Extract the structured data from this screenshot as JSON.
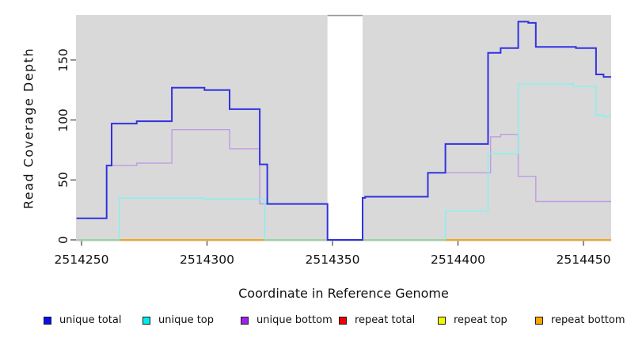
{
  "figure": {
    "x_title": "Coordinate in Reference Genome",
    "y_title": "Read Coverage Depth"
  },
  "chart_data": {
    "type": "line",
    "step": true,
    "title": "",
    "xlabel": "Coordinate in Reference Genome",
    "ylabel": "Read Coverage Depth",
    "xlim": [
      2514248,
      2514461
    ],
    "ylim": [
      0,
      187
    ],
    "x_ticks": [
      2514250,
      2514300,
      2514350,
      2514400,
      2514450
    ],
    "y_ticks": [
      0,
      50,
      100,
      150
    ],
    "grid": false,
    "panel_bg": "#d9d9d9",
    "gap_region": {
      "x_start": 2514348,
      "x_end": 2514362,
      "fill": "#ffffff",
      "top_edge_color": "#999999"
    },
    "series": [
      {
        "name": "repeat total",
        "line_color": "#e03030",
        "points": [
          [
            2514248,
            0
          ],
          [
            2514461,
            0
          ]
        ]
      },
      {
        "name": "repeat top",
        "line_color": "#f2f20a",
        "points": [
          [
            2514248,
            0
          ],
          [
            2514461,
            0
          ]
        ]
      },
      {
        "name": "repeat bottom",
        "line_color": "#ff9f00",
        "points": [
          [
            2514248,
            0
          ],
          [
            2514461,
            0
          ]
        ]
      },
      {
        "name": "unique bottom",
        "line_color": "#c29ae4",
        "points": [
          [
            2514248,
            18
          ],
          [
            2514260,
            62
          ],
          [
            2514272,
            64
          ],
          [
            2514286,
            92
          ],
          [
            2514309,
            76
          ],
          [
            2514321,
            30
          ],
          [
            2514348,
            0
          ],
          [
            2514362,
            35
          ],
          [
            2514363,
            36
          ],
          [
            2514388,
            56
          ],
          [
            2514413,
            86
          ],
          [
            2514417,
            88
          ],
          [
            2514424,
            53
          ],
          [
            2514431,
            32
          ],
          [
            2514461,
            32
          ]
        ]
      },
      {
        "name": "unique top",
        "line_color": "#82f2f2",
        "points": [
          [
            2514248,
            0
          ],
          [
            2514265,
            35
          ],
          [
            2514299,
            34
          ],
          [
            2514323,
            0
          ],
          [
            2514395,
            24
          ],
          [
            2514412,
            72
          ],
          [
            2514424,
            130
          ],
          [
            2514446,
            128
          ],
          [
            2514455,
            104
          ],
          [
            2514458,
            103
          ],
          [
            2514461,
            103
          ]
        ]
      },
      {
        "name": "unique total",
        "line_color": "#3232e2",
        "line_width": 2,
        "points": [
          [
            2514248,
            18
          ],
          [
            2514260,
            62
          ],
          [
            2514262,
            97
          ],
          [
            2514272,
            99
          ],
          [
            2514286,
            127
          ],
          [
            2514299,
            125
          ],
          [
            2514309,
            109
          ],
          [
            2514321,
            63
          ],
          [
            2514324,
            30
          ],
          [
            2514348,
            0
          ],
          [
            2514362,
            35
          ],
          [
            2514363,
            36
          ],
          [
            2514388,
            56
          ],
          [
            2514395,
            80
          ],
          [
            2514412,
            156
          ],
          [
            2514417,
            160
          ],
          [
            2514424,
            182
          ],
          [
            2514428,
            181
          ],
          [
            2514431,
            161
          ],
          [
            2514447,
            160
          ],
          [
            2514455,
            138
          ],
          [
            2514458,
            136
          ],
          [
            2514461,
            136
          ]
        ]
      }
    ],
    "zero_line_overlaps": [
      {
        "note": "cyan-over-orange blend at depth 0",
        "color": "#96d5a5",
        "x_start": 2514248,
        "x_end": 2514265
      },
      {
        "note": "cyan-over-orange blend at depth 0",
        "color": "#96d5a5",
        "x_start": 2514323,
        "x_end": 2514395
      }
    ],
    "legend": {
      "position": "bottom",
      "entries": [
        {
          "label": "unique total",
          "swatch_color": "#0d0df2"
        },
        {
          "label": "unique top",
          "swatch_color": "#00ecec"
        },
        {
          "label": "unique bottom",
          "swatch_color": "#a020f0"
        },
        {
          "label": "repeat total",
          "swatch_color": "#ee0000"
        },
        {
          "label": "repeat top",
          "swatch_color": "#f5f500"
        },
        {
          "label": "repeat bottom",
          "swatch_color": "#ffa500"
        }
      ]
    }
  }
}
